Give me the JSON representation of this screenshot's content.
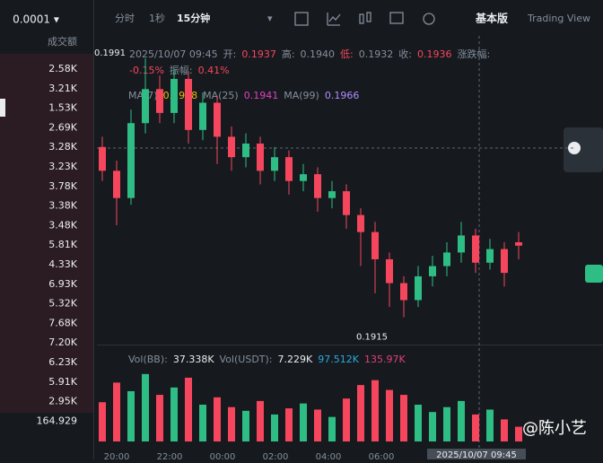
{
  "order_book": {
    "step": "0.0001 ▾",
    "header": "成交额",
    "values": [
      "2.58K",
      "3.21K",
      "1.53K",
      "2.69K",
      "3.28K",
      "3.23K",
      "3.78K",
      "3.38K",
      "3.48K",
      "5.81K",
      "4.33K",
      "6.93K",
      "5.32K",
      "7.68K",
      "7.20K",
      "6.23K",
      "5.91K",
      "2.95K",
      "164.929"
    ]
  },
  "toolbar": {
    "intervals": [
      "分时",
      "1秒",
      "15分钟"
    ],
    "dropdown": "▾",
    "basic": "基本版",
    "tv": "Trading View"
  },
  "info": {
    "time": "2025/10/07 09:45",
    "open_label": "开:",
    "open": "0.1937",
    "high_label": "高:",
    "high": "0.1940",
    "low_label": "低:",
    "low": "0.1932",
    "close_label": "收:",
    "close": "0.1936",
    "change_label": "涨跌幅:",
    "change": "-0.15%",
    "amp_label": "振幅:",
    "amp": "0.41%"
  },
  "ma": {
    "ma7_label": "MA(7)",
    "ma7": "0.1938",
    "ma25_label": "MA(25)",
    "ma25": "0.1941",
    "ma99_label": "MA(99)",
    "ma99": "0.1966"
  },
  "vol": {
    "bb_label": "Vol(BB):",
    "bb": "37.338K",
    "usdt_label": "Vol(USDT):",
    "usdt": "7.229K",
    "v1": "97.512K",
    "v2": "135.97K"
  },
  "watermark": "@陈小艺",
  "crosshair_time": "2025/10/07 09:45",
  "chart_data": {
    "type": "candlestick",
    "ylim": [
      0.1908,
      0.1995
    ],
    "up_color": "#2ebd85",
    "down_color": "#f6465d",
    "max_label": "0.1991",
    "min_label": "0.1915",
    "open": [
      0.1965,
      0.1958,
      0.195,
      0.1972,
      0.1982,
      0.1975,
      0.1985,
      0.197,
      0.1978,
      0.1968,
      0.1962,
      0.1966,
      0.1958,
      0.1962,
      0.1955,
      0.1957,
      0.195,
      0.1952,
      0.1945,
      0.194,
      0.1932,
      0.1925,
      0.192,
      0.1927,
      0.193,
      0.1934,
      0.1939,
      0.1931,
      0.1935,
      0.1937
    ],
    "high": [
      0.1968,
      0.1961,
      0.1976,
      0.1991,
      0.1986,
      0.1988,
      0.1987,
      0.1981,
      0.198,
      0.1971,
      0.1969,
      0.1968,
      0.1965,
      0.1964,
      0.196,
      0.1959,
      0.1955,
      0.1954,
      0.1947,
      0.1943,
      0.1934,
      0.1927,
      0.193,
      0.1933,
      0.1937,
      0.1943,
      0.1941,
      0.1938,
      0.1937,
      0.194
    ],
    "low": [
      0.1955,
      0.1942,
      0.1948,
      0.1969,
      0.1972,
      0.1972,
      0.1966,
      0.1967,
      0.196,
      0.1958,
      0.1959,
      0.1954,
      0.1955,
      0.1951,
      0.1952,
      0.1946,
      0.1947,
      0.1941,
      0.193,
      0.1922,
      0.1918,
      0.1915,
      0.1918,
      0.1924,
      0.1927,
      0.1931,
      0.1928,
      0.1929,
      0.1924,
      0.1932
    ],
    "close": [
      0.1958,
      0.195,
      0.1972,
      0.1982,
      0.1975,
      0.1985,
      0.197,
      0.1978,
      0.1968,
      0.1962,
      0.1966,
      0.1958,
      0.1962,
      0.1955,
      0.1957,
      0.195,
      0.1952,
      0.1945,
      0.194,
      0.1932,
      0.1925,
      0.192,
      0.1927,
      0.193,
      0.1934,
      0.1939,
      0.1931,
      0.1935,
      0.1928,
      0.1936
    ],
    "volume": [
      32,
      48,
      41,
      55,
      38,
      44,
      52,
      30,
      36,
      28,
      25,
      33,
      22,
      27,
      31,
      26,
      20,
      35,
      46,
      50,
      42,
      38,
      30,
      24,
      28,
      33,
      22,
      26,
      18,
      12
    ],
    "vlim": [
      0,
      60
    ],
    "times": [
      "20:00",
      "22:00",
      "00:00",
      "02:00",
      "04:00",
      "06:00"
    ]
  }
}
